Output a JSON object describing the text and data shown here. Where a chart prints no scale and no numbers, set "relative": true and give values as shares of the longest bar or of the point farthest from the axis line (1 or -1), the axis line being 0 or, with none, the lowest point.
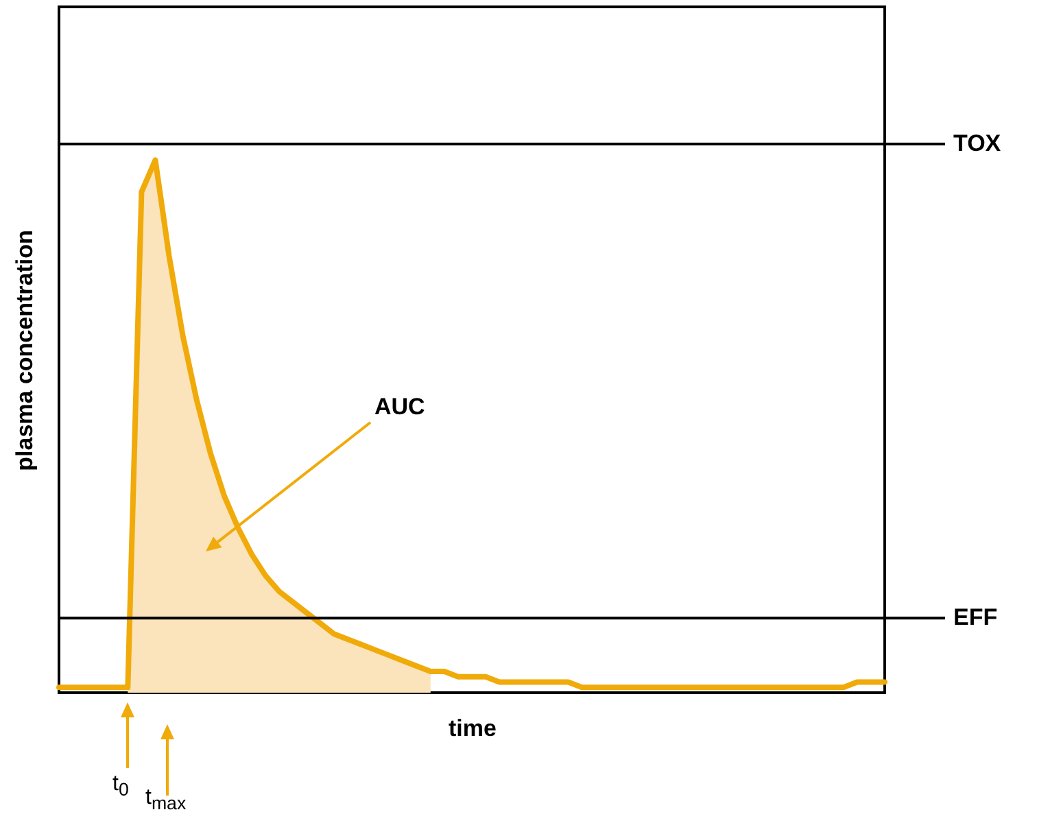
{
  "chart_data": {
    "type": "line",
    "relative": true,
    "xlabel": "time",
    "ylabel": "plasma concentration",
    "categories": [
      null,
      null,
      null,
      null,
      null,
      null,
      null,
      null,
      null,
      null,
      null,
      null,
      null,
      null,
      null,
      null,
      null,
      null,
      null,
      null,
      null,
      null,
      null,
      null,
      null,
      null,
      null,
      null,
      null,
      null,
      null,
      null,
      null,
      null,
      null,
      null,
      null,
      null,
      null,
      null,
      null,
      null,
      null,
      null,
      null,
      null,
      null,
      null,
      null,
      null,
      null,
      null,
      null,
      null,
      null,
      null,
      null,
      null,
      null,
      null,
      null
    ],
    "series": [
      {
        "type": "area",
        "color": "#fbe3bb",
        "values": [
          null,
          null,
          null,
          null,
          null,
          0.01,
          0.94,
          1,
          0.82,
          0.67,
          0.55,
          0.45,
          0.37,
          0.31,
          0.26,
          0.22,
          0.19,
          0.17,
          0.15,
          0.13,
          0.11,
          0.1,
          0.09,
          0.08,
          0.07,
          0.06,
          0.05,
          0.04,
          null,
          null,
          null,
          null,
          null,
          null,
          null,
          null,
          null,
          null,
          null,
          null,
          null,
          null,
          null,
          null,
          null,
          null,
          null,
          null,
          null,
          null,
          null,
          null,
          null,
          null,
          null,
          null,
          null,
          null,
          null,
          null,
          null
        ]
      },
      {
        "color": "#f0aa0a",
        "values": [
          0.01,
          0.01,
          0.01,
          0.01,
          0.01,
          0.01,
          0.94,
          1,
          0.82,
          0.67,
          0.55,
          0.45,
          0.37,
          0.31,
          0.26,
          0.22,
          0.19,
          0.17,
          0.15,
          0.13,
          0.11,
          0.1,
          0.09,
          0.08,
          0.07,
          0.06,
          0.05,
          0.04,
          0.04,
          0.03,
          0.03,
          0.03,
          0.02,
          0.02,
          0.02,
          0.02,
          0.02,
          0.02,
          0.01,
          0.01,
          0.01,
          0.01,
          0.01,
          0.01,
          0.01,
          0.01,
          0.01,
          0.01,
          0.01,
          0.01,
          0.01,
          0.01,
          0.01,
          0.01,
          0.01,
          0.01,
          0.01,
          0.01,
          0.02,
          0.02,
          0.02
        ]
      }
    ],
    "ref_lines": [
      {
        "axis": "y",
        "value": 1.03,
        "label": "TOX"
      },
      {
        "axis": "y",
        "value": 0.14,
        "label": "EFF"
      }
    ],
    "annotations": [
      "AUC",
      "t$_{0}$",
      "t$_{max}$"
    ],
    "grid": false
  }
}
